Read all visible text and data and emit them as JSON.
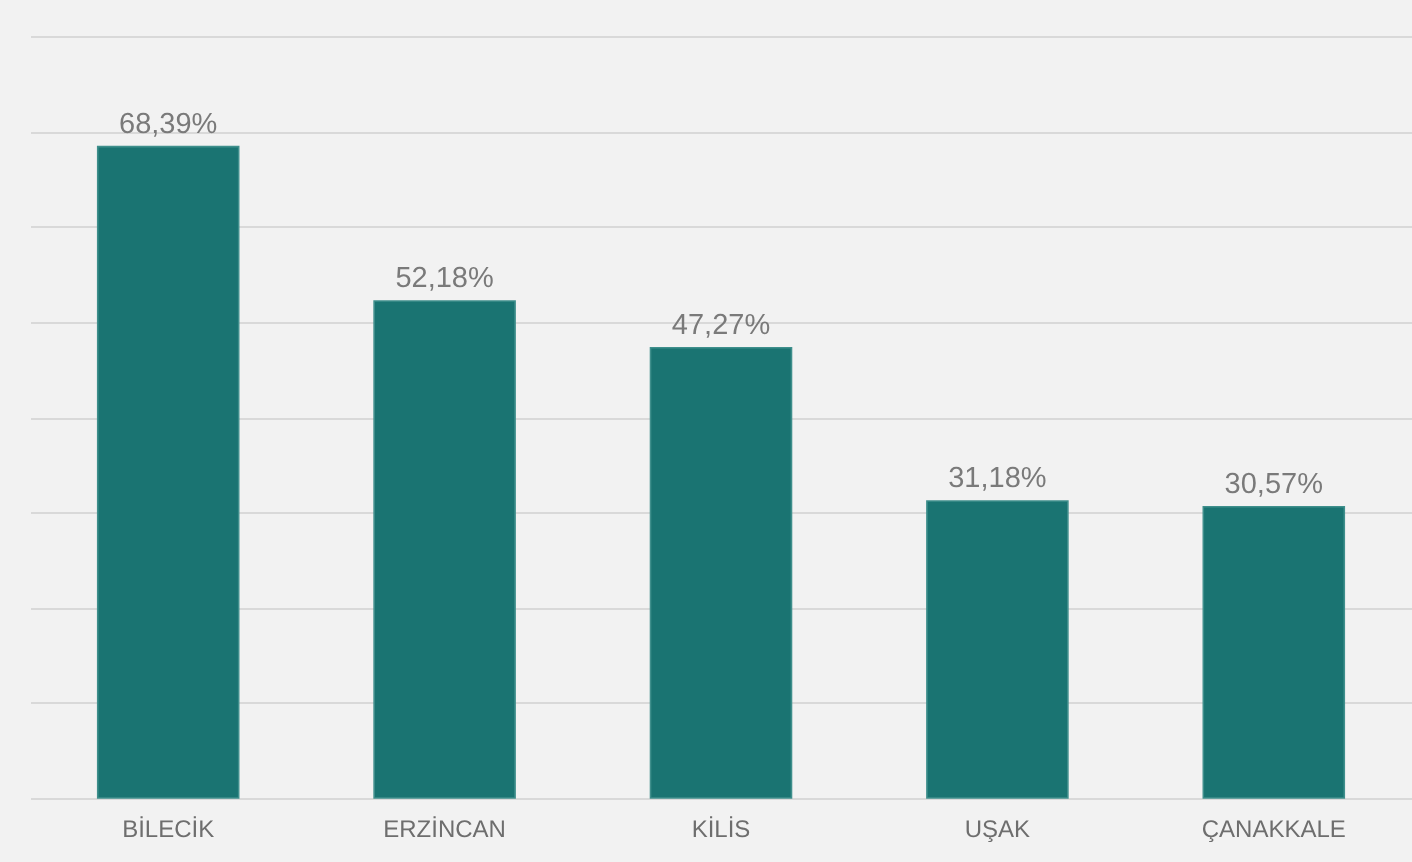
{
  "chart_data": {
    "type": "bar",
    "categories": [
      "BİLECİK",
      "ERZİNCAN",
      "KİLİS",
      "UŞAK",
      "ÇANAKKALE"
    ],
    "values": [
      68.39,
      52.18,
      47.27,
      31.18,
      30.57
    ],
    "value_labels": [
      "68,39%",
      "52,18%",
      "47,27%",
      "31,18%",
      "30,57%"
    ],
    "color": "#1a7472",
    "ylim": [
      0,
      80
    ],
    "yticks": [
      {
        "value": 0,
        "label": null
      },
      {
        "value": 10,
        "label": null
      },
      {
        "value": 20,
        "label": null
      },
      {
        "value": 30,
        "label": null
      },
      {
        "value": 40,
        "label": null
      },
      {
        "value": 50,
        "label": null
      },
      {
        "value": 60,
        "label": null
      },
      {
        "value": 70,
        "label": null
      },
      {
        "value": 80,
        "label": null
      }
    ],
    "grid": "y",
    "tick_labels": "x"
  }
}
